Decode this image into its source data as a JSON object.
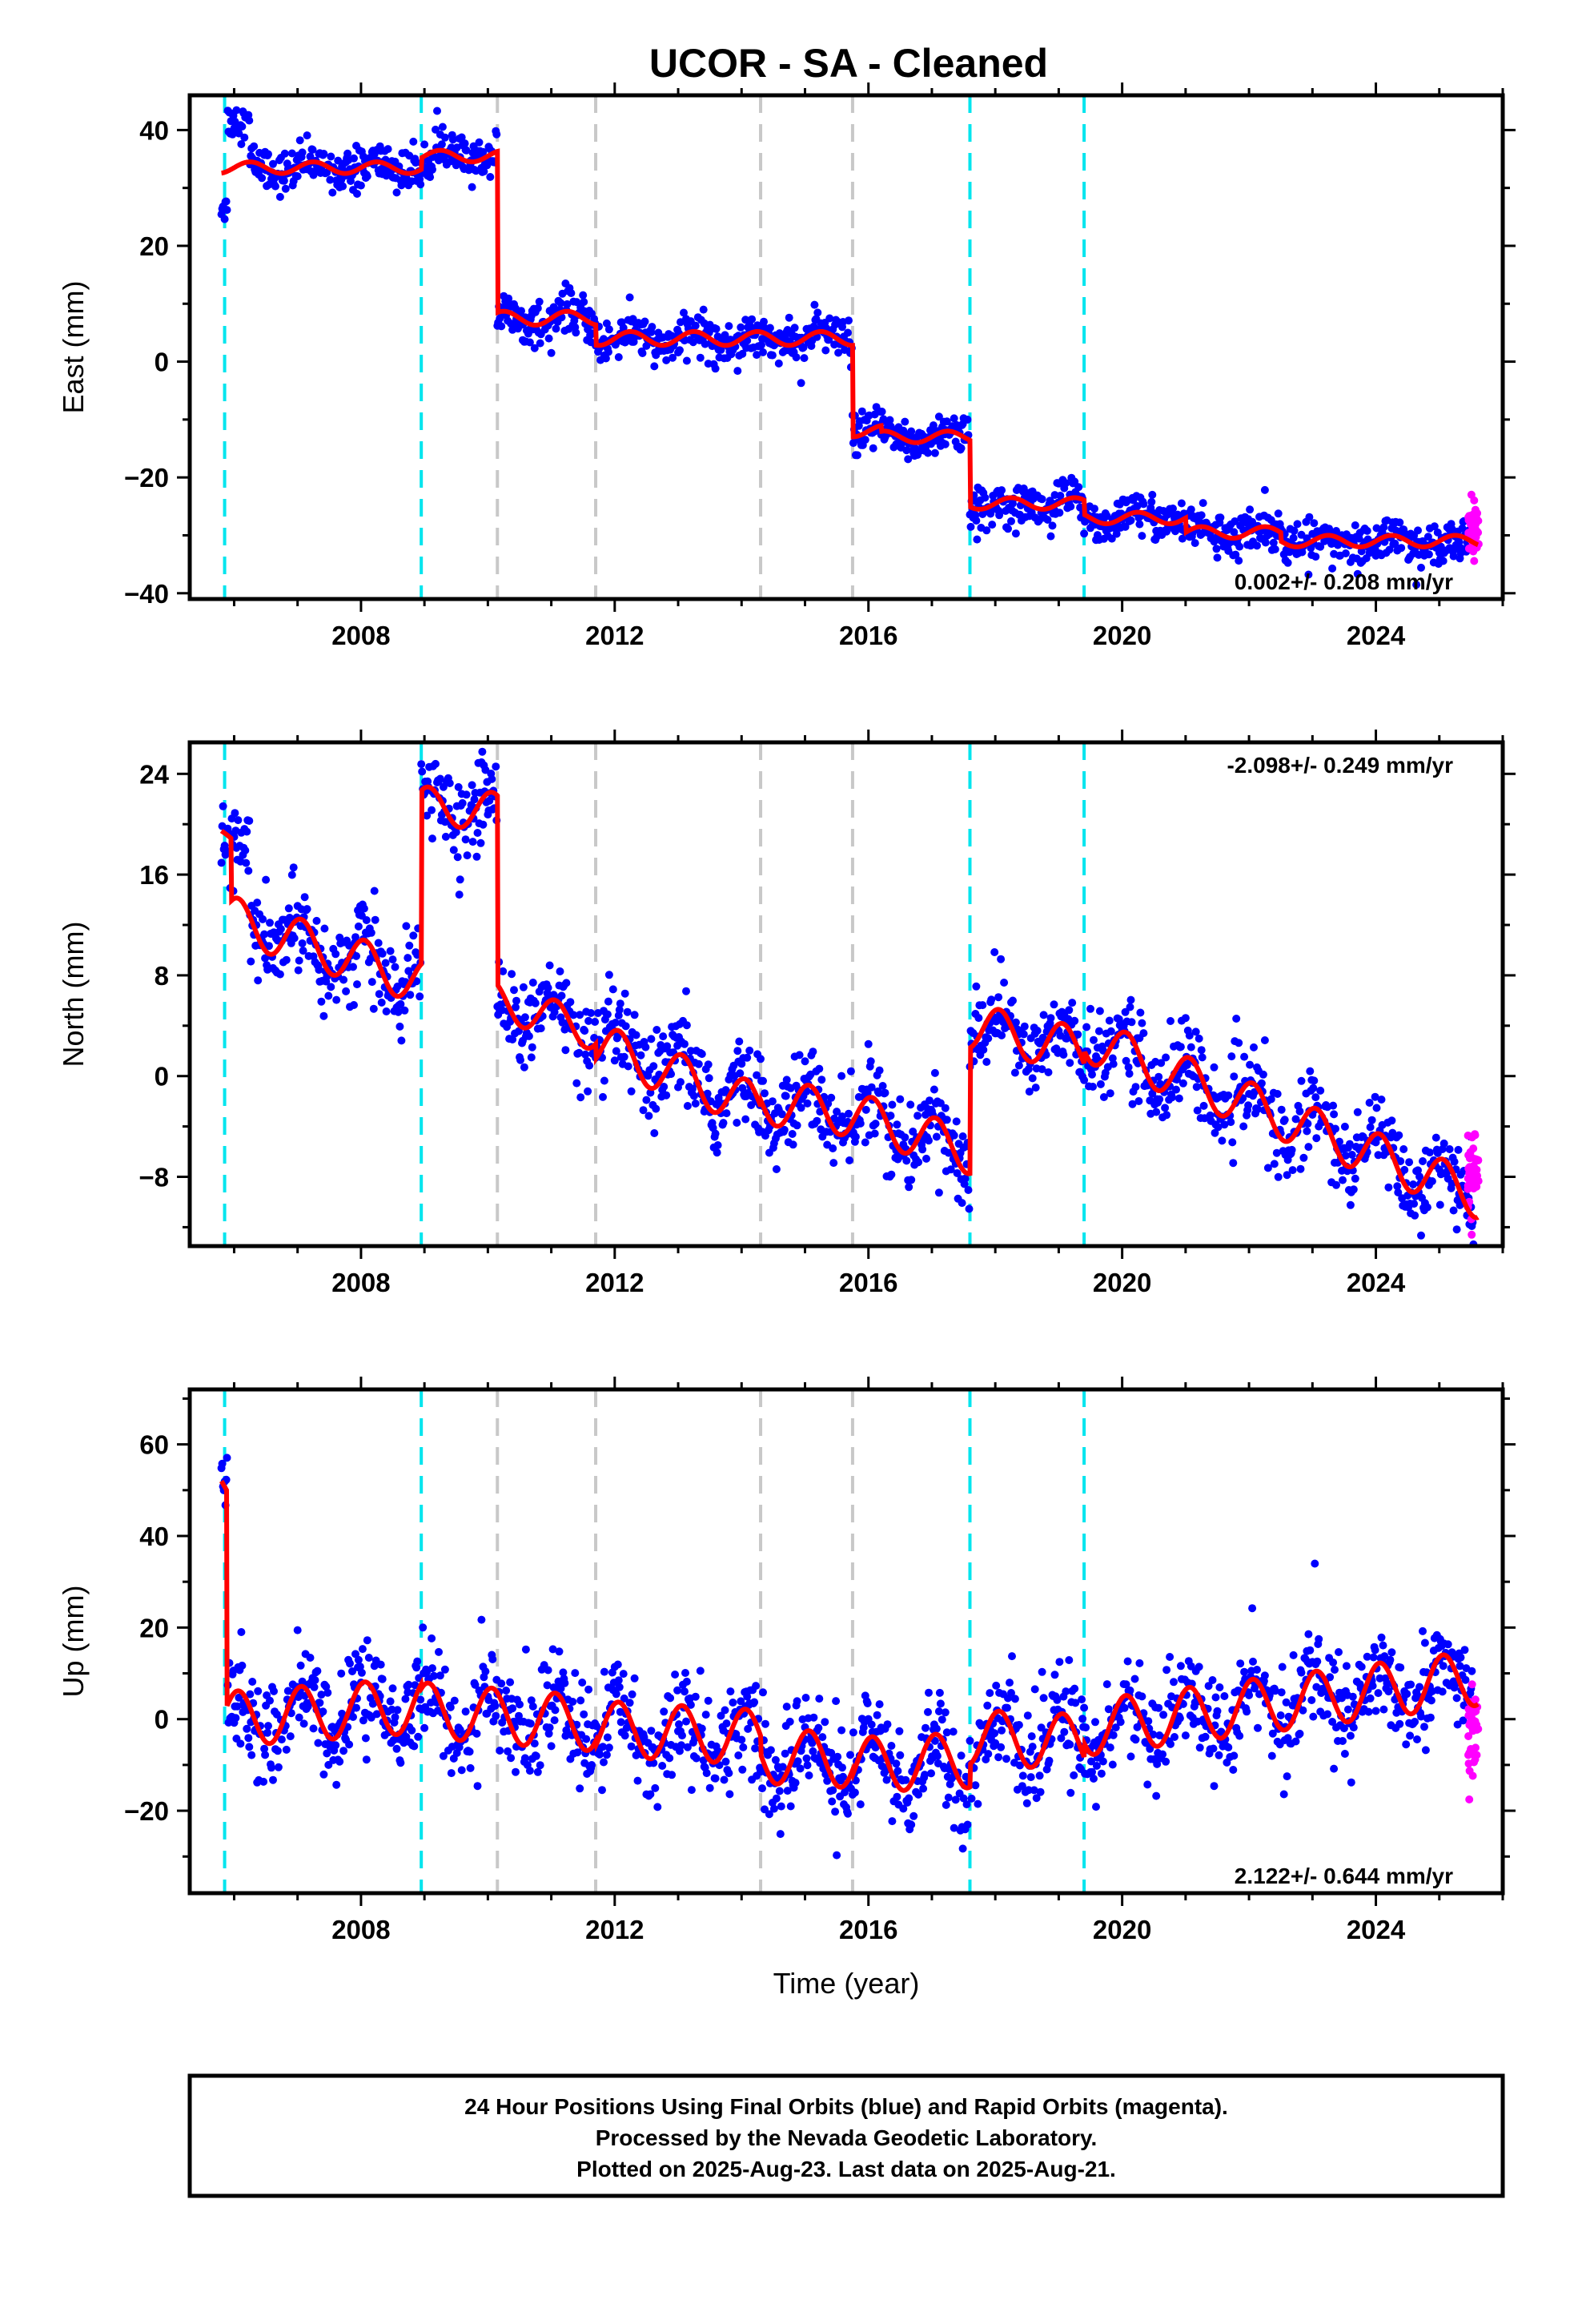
{
  "title": "UCOR  - SA - Cleaned",
  "footer": {
    "lines": [
      "24 Hour Positions Using Final Orbits (blue) and Rapid Orbits (magenta).",
      "Processed by the Nevada Geodetic Laboratory.",
      "Plotted on 2025-Aug-23. Last data on 2025-Aug-21."
    ]
  },
  "colors": {
    "final_orbits": "#0000ff",
    "rapid_orbits": "#ff00ff",
    "model_fit": "#ff0000",
    "equipment_change": "#00e5ee",
    "earthquake_step": "#c8c8c8"
  },
  "chart_data": [
    {
      "type": "scatter",
      "name": "east",
      "ylabel": "East (mm)",
      "xlabel": "",
      "xlim": [
        2005.3,
        2026.0
      ],
      "ylim": [
        -41,
        46
      ],
      "xticks": [
        2008,
        2012,
        2016,
        2020,
        2024
      ],
      "yticks": [
        -40,
        -20,
        0,
        20,
        40
      ],
      "grid": false,
      "rate_text": "0.002+/- 0.208 mm/yr",
      "rate_position": "bottom-right",
      "cyan_lines": [
        2005.85,
        2008.95,
        2017.6,
        2019.4
      ],
      "gray_lines": [
        2010.15,
        2011.7,
        2014.3,
        2015.75
      ],
      "model": {
        "offsets": [
          {
            "from": 2005.8,
            "value": 33.5,
            "amp": 1.0
          },
          {
            "from": 2008.95,
            "value": 35.5,
            "amp": 1.0
          },
          {
            "from": 2010.15,
            "value": 7.5,
            "amp": 1.2
          },
          {
            "from": 2011.7,
            "value": 4.0,
            "amp": 1.2
          },
          {
            "from": 2015.75,
            "value": -12.0,
            "amp": 1.0
          },
          {
            "from": 2016.2,
            "value": -13.0,
            "amp": 1.0
          },
          {
            "from": 2017.6,
            "value": -24.5,
            "amp": 1.0
          },
          {
            "from": 2019.4,
            "value": -27.0,
            "amp": 1.0
          },
          {
            "from": 2021.0,
            "value": -29.5,
            "amp": 1.0
          },
          {
            "from": 2022.5,
            "value": -31.0,
            "amp": 1.0
          }
        ],
        "trend": 0.0,
        "ref_epoch": 2005.8
      },
      "data_start": 2005.8,
      "data_end": 2025.55,
      "scatter_sigma": 1.8,
      "rapid": {
        "from": 2025.45,
        "to": 2025.62,
        "center": -29.0,
        "sigma": 2.5
      },
      "clusters": [
        {
          "from": 2005.85,
          "to": 2006.25,
          "center": 41.5,
          "sigma": 1.5
        },
        {
          "from": 2005.8,
          "to": 2005.9,
          "center": 27.0,
          "sigma": 1.5
        }
      ]
    },
    {
      "type": "scatter",
      "name": "north",
      "ylabel": "North (mm)",
      "xlabel": "",
      "xlim": [
        2005.3,
        2026.0
      ],
      "ylim": [
        -13.5,
        26.5
      ],
      "xticks": [
        2008,
        2012,
        2016,
        2020,
        2024
      ],
      "yticks": [
        -8,
        0,
        8,
        16,
        24
      ],
      "grid": false,
      "rate_text": "-2.098+/- 0.249 mm/yr",
      "rate_position": "top-right",
      "cyan_lines": [
        2005.85,
        2008.95,
        2017.6,
        2019.4
      ],
      "gray_lines": [
        2010.15,
        2011.7,
        2014.3,
        2015.75
      ],
      "model": {
        "segments": [
          {
            "from": 2005.8,
            "to": 2005.95,
            "start": 19.5,
            "end": 18.5,
            "amp": 0.5
          },
          {
            "from": 2005.95,
            "to": 2008.95,
            "start": 12.5,
            "end": 7.5,
            "amp": 1.8
          },
          {
            "from": 2008.95,
            "to": 2010.15,
            "start": 21.5,
            "end": 21.0,
            "amp": 1.5
          },
          {
            "from": 2010.15,
            "to": 2011.7,
            "start": 6.0,
            "end": 3.5,
            "amp": 1.5
          },
          {
            "from": 2011.7,
            "to": 2014.3,
            "start": 2.5,
            "end": -2.5,
            "amp": 1.8
          },
          {
            "from": 2014.3,
            "to": 2015.75,
            "start": -2.0,
            "end": -3.0,
            "amp": 1.8
          },
          {
            "from": 2015.75,
            "to": 2017.6,
            "start": -3.0,
            "end": -6.0,
            "amp": 1.8
          },
          {
            "from": 2017.6,
            "to": 2019.4,
            "start": 4.0,
            "end": 2.0,
            "amp": 1.8
          },
          {
            "from": 2019.4,
            "to": 2025.6,
            "start": 3.0,
            "end": -9.5,
            "amp": 1.8
          }
        ]
      },
      "data_start": 2005.8,
      "data_end": 2025.55,
      "scatter_sigma": 1.7,
      "rapid": {
        "from": 2025.45,
        "to": 2025.62,
        "center": -7.5,
        "sigma": 1.5
      },
      "clusters": [
        {
          "from": 2005.8,
          "to": 2006.25,
          "center": 18.5,
          "sigma": 1.6
        }
      ]
    },
    {
      "type": "scatter",
      "name": "up",
      "ylabel": "Up (mm)",
      "xlabel": "Time (year)",
      "xlim": [
        2005.3,
        2026.0
      ],
      "ylim": [
        -38,
        72
      ],
      "xticks": [
        2008,
        2012,
        2016,
        2020,
        2024
      ],
      "yticks": [
        -20,
        0,
        20,
        40,
        60
      ],
      "grid": false,
      "rate_text": "2.122+/- 0.644 mm/yr",
      "rate_position": "bottom-right",
      "cyan_lines": [
        2005.85,
        2008.95,
        2017.6,
        2019.4
      ],
      "gray_lines": [
        2010.15,
        2011.7,
        2014.3,
        2015.75
      ],
      "model": {
        "segments": [
          {
            "from": 2005.8,
            "to": 2005.88,
            "start": 52.0,
            "end": 50.0,
            "amp": 0.0
          },
          {
            "from": 2005.88,
            "to": 2008.95,
            "start": 0.0,
            "end": 3.0,
            "amp": 6.0
          },
          {
            "from": 2008.95,
            "to": 2011.7,
            "start": 2.0,
            "end": -1.0,
            "amp": 6.0
          },
          {
            "from": 2011.7,
            "to": 2014.3,
            "start": -2.0,
            "end": -4.0,
            "amp": 6.0
          },
          {
            "from": 2014.3,
            "to": 2015.75,
            "start": -8.0,
            "end": -9.0,
            "amp": 6.0
          },
          {
            "from": 2015.75,
            "to": 2017.6,
            "start": -10.0,
            "end": -9.0,
            "amp": 6.0
          },
          {
            "from": 2017.6,
            "to": 2019.4,
            "start": -4.0,
            "end": -5.0,
            "amp": 6.0
          },
          {
            "from": 2019.4,
            "to": 2025.6,
            "start": -2.0,
            "end": 9.0,
            "amp": 6.0
          }
        ]
      },
      "data_start": 2005.8,
      "data_end": 2025.55,
      "scatter_sigma": 5.5,
      "rapid": {
        "from": 2025.45,
        "to": 2025.62,
        "center": -4.0,
        "sigma": 6.0
      },
      "clusters": [
        {
          "from": 2005.8,
          "to": 2005.9,
          "center": 55.0,
          "sigma": 5.0
        }
      ]
    }
  ]
}
